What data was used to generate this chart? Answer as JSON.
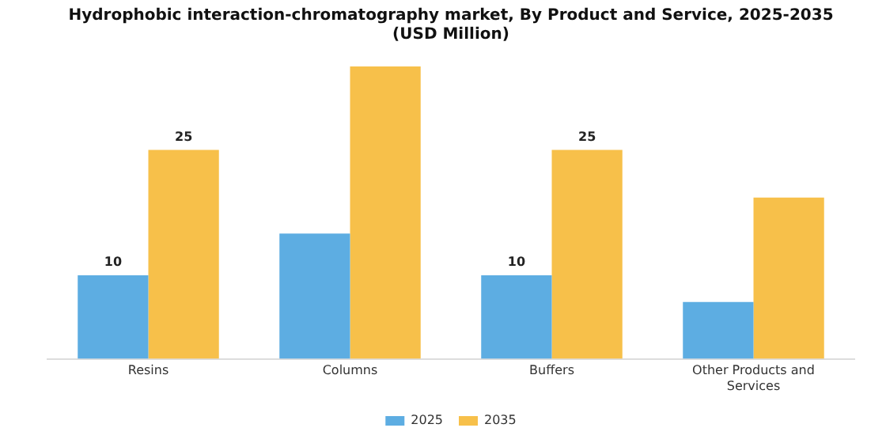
{
  "chart_data": {
    "type": "bar",
    "title": "Hydrophobic interaction-chromatography market, By Product and Service, 2025-2035 (USD Million)",
    "categories": [
      "Resins",
      "Columns",
      "Buffers",
      "Other Products and Services"
    ],
    "series": [
      {
        "name": "2025",
        "color": "#5dade2",
        "values": [
          10,
          15,
          10,
          6.8
        ],
        "value_labels": [
          "10",
          null,
          "10",
          null
        ]
      },
      {
        "name": "2035",
        "color": "#f7c04a",
        "values": [
          25,
          35,
          25,
          19.3
        ],
        "value_labels": [
          "25",
          null,
          "25",
          null
        ]
      }
    ],
    "legend": "bottom",
    "grid": false
  }
}
